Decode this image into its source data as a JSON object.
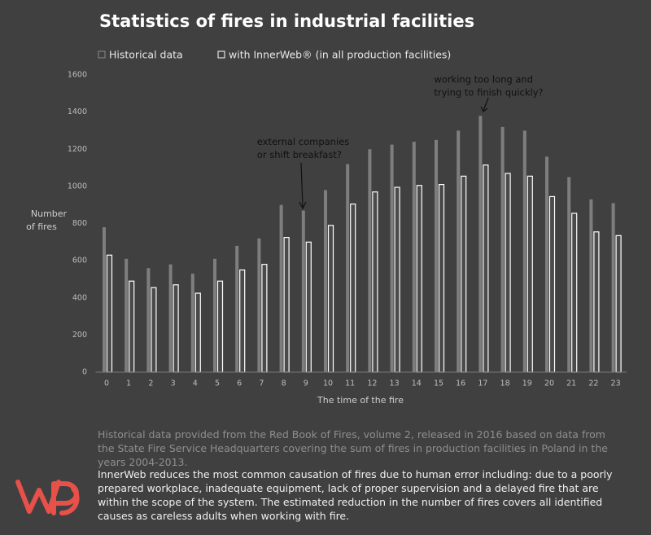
{
  "chart_data": {
    "type": "bar",
    "title": "Statistics of fires in industrial facilities",
    "x_label": "The time of the fire",
    "y_label": [
      "Number",
      "of fires"
    ],
    "categories": [
      "0",
      "1",
      "2",
      "3",
      "4",
      "5",
      "6",
      "7",
      "8",
      "9",
      "10",
      "11",
      "12",
      "13",
      "14",
      "15",
      "16",
      "17",
      "18",
      "19",
      "20",
      "21",
      "22",
      "23"
    ],
    "series": [
      {
        "name": "Historical data",
        "color": "#8a8a8a",
        "values": [
          780,
          610,
          560,
          580,
          530,
          610,
          680,
          720,
          900,
          870,
          980,
          1120,
          1200,
          1225,
          1240,
          1250,
          1300,
          1380,
          1320,
          1300,
          1160,
          1050,
          930,
          910
        ]
      },
      {
        "name": "with InnerWeb® (in all production facilities)",
        "color": "#ffffff",
        "values": [
          630,
          490,
          455,
          470,
          425,
          490,
          550,
          580,
          725,
          700,
          790,
          905,
          970,
          995,
          1005,
          1010,
          1055,
          1115,
          1070,
          1055,
          945,
          855,
          755,
          735
        ]
      }
    ],
    "ylim": [
      0,
      1600
    ],
    "yticks": [
      0,
      200,
      400,
      600,
      800,
      1000,
      1200,
      1400,
      1600
    ],
    "grid": false,
    "annotations": [
      {
        "category": 9,
        "lines": [
          "external companies",
          "or shift breakfast?"
        ]
      },
      {
        "category": 17,
        "lines": [
          "working too long and",
          "trying to finish quickly?"
        ]
      }
    ]
  },
  "notes": [
    "Historical data provided from the Red Book of Fires, volume 2, released in 2016 based on data from the State Fire Service Headquarters covering the sum of fires in production facilities in Poland in the years 2004-2013.",
    "InnerWeb reduces the most common causation of fires due to human error including: due to a poorly prepared workplace, inadequate equipment, lack of proper supervision and a delayed fire that are within the scope of the system. The estimated reduction in the number of fires covers all identified causes as careless adults when working with fire."
  ]
}
